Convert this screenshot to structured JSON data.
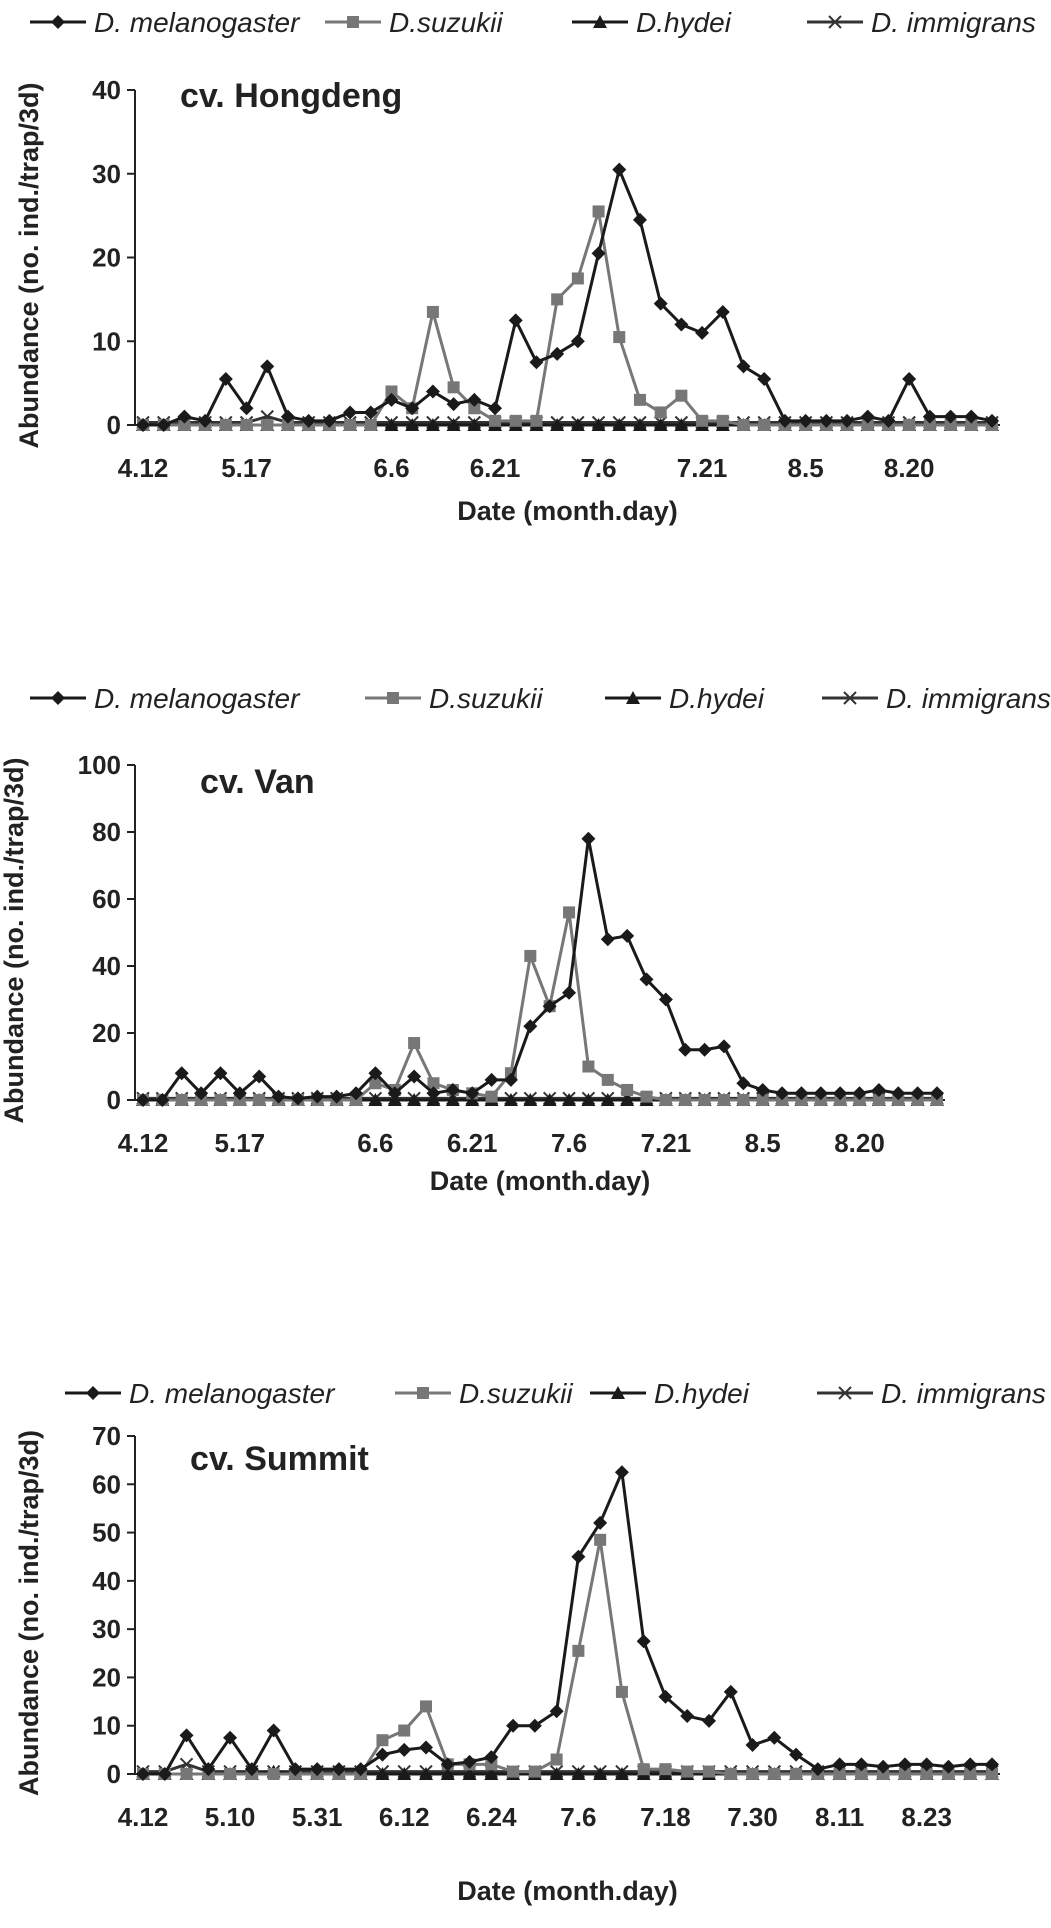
{
  "chart_data": [
    {
      "type": "line",
      "title": "cv. Hongdeng",
      "xlabel": "Date (month.day)",
      "ylabel": "Abundance (no. ind./trap/3d)",
      "ylim": [
        0,
        40
      ],
      "yticks": [
        0,
        10,
        20,
        30,
        40
      ],
      "xtick_labels": [
        "4.12",
        "5.17",
        "6.6",
        "6.21",
        "7.6",
        "7.21",
        "8.5",
        "8.20"
      ],
      "xtick_index": [
        0,
        5,
        12,
        17,
        22,
        27,
        32,
        37
      ],
      "legend_position": "top",
      "grid": false,
      "series": [
        {
          "name": "D. melanogaster",
          "marker": "diamond",
          "color": "#1a1a1a",
          "values": [
            0,
            0,
            1,
            0.5,
            5.5,
            2,
            7,
            1,
            0.5,
            0.5,
            1.5,
            1.5,
            3,
            2,
            4,
            2.5,
            3,
            2,
            12.5,
            7.5,
            8.5,
            10,
            20.5,
            30.5,
            24.5,
            14.5,
            12,
            11,
            13.5,
            7,
            5.5,
            0.5,
            0.5,
            0.5,
            0.5,
            1,
            0.5,
            5.5,
            1,
            1,
            1,
            0.5
          ]
        },
        {
          "name": "D.suzukii",
          "marker": "square",
          "color": "#777777",
          "values": [
            0,
            0,
            0,
            0,
            0,
            0,
            0,
            0,
            0,
            0,
            0,
            0,
            4,
            2,
            13.5,
            4.5,
            2,
            0.5,
            0.5,
            0.5,
            15,
            17.5,
            25.5,
            10.5,
            3,
            1.5,
            3.5,
            0.5,
            0.5,
            0,
            0,
            0,
            0,
            0,
            0,
            0,
            0,
            0,
            0,
            0,
            0,
            0
          ]
        },
        {
          "name": "D.hydei",
          "marker": "triangle",
          "color": "#1a1a1a",
          "values": [
            0,
            0,
            0,
            0,
            0,
            0,
            0,
            0,
            0,
            0,
            0,
            0,
            0,
            0,
            0,
            0,
            0,
            0,
            0,
            0,
            0,
            0,
            0,
            0,
            0,
            0,
            0,
            0,
            0,
            0,
            0,
            0,
            0,
            0,
            0,
            0,
            0,
            0,
            0,
            0,
            0,
            0
          ]
        },
        {
          "name": "D. immigrans",
          "marker": "x",
          "color": "#333333",
          "values": [
            0.3,
            0.3,
            0.3,
            0.3,
            0.3,
            0.3,
            1,
            0.3,
            0.3,
            0.3,
            0.3,
            0.3,
            0.3,
            0.3,
            0.3,
            0.3,
            0.3,
            0.3,
            0.3,
            0.3,
            0.3,
            0.3,
            0.3,
            0.3,
            0.3,
            0.3,
            0.3,
            0.3,
            0.3,
            0.3,
            0.3,
            0.3,
            0.3,
            0.3,
            0.3,
            0.3,
            0.3,
            0.3,
            0.3,
            0.3,
            0.3,
            0.3
          ]
        }
      ]
    },
    {
      "type": "line",
      "title": "cv. Van",
      "xlabel": "Date (month.day)",
      "ylabel": "Abundance (no. ind./trap/3d)",
      "ylim": [
        0,
        100
      ],
      "yticks": [
        0,
        20,
        40,
        60,
        80,
        100
      ],
      "xtick_labels": [
        "4.12",
        "5.17",
        "6.6",
        "6.21",
        "7.6",
        "7.21",
        "8.5",
        "8.20"
      ],
      "xtick_index": [
        0,
        5,
        12,
        17,
        22,
        27,
        32,
        37
      ],
      "legend_position": "top",
      "grid": false,
      "series": [
        {
          "name": "D. melanogaster",
          "marker": "diamond",
          "color": "#1a1a1a",
          "values": [
            0,
            0,
            8,
            2,
            8,
            2,
            7,
            1,
            0.5,
            1,
            1,
            2,
            8,
            2,
            7,
            2,
            3,
            2,
            6,
            6,
            22,
            28,
            32,
            78,
            48,
            49,
            36,
            30,
            15,
            15,
            16,
            5,
            3,
            2,
            2,
            2,
            2,
            2,
            3,
            2,
            2,
            2
          ]
        },
        {
          "name": "D.suzukii",
          "marker": "square",
          "color": "#777777",
          "values": [
            0,
            0,
            0,
            0,
            0,
            0,
            0,
            0,
            0,
            0,
            0,
            0,
            5,
            3,
            17,
            5,
            3,
            2,
            1,
            8,
            43,
            28,
            56,
            10,
            6,
            3,
            1,
            0,
            0,
            0,
            0,
            0,
            0,
            0,
            0,
            0,
            0,
            0,
            0,
            0,
            0,
            0
          ]
        },
        {
          "name": "D.hydei",
          "marker": "triangle",
          "color": "#1a1a1a",
          "values": [
            0,
            0,
            0,
            0,
            0,
            0,
            0,
            0,
            0,
            0,
            0,
            0,
            0,
            0,
            0,
            0,
            0,
            0,
            0,
            0,
            0,
            0,
            0,
            0,
            0,
            0,
            0,
            0,
            0,
            0,
            0,
            0,
            0,
            0,
            0,
            0,
            0,
            0,
            0,
            0,
            0,
            0
          ]
        },
        {
          "name": "D. immigrans",
          "marker": "x",
          "color": "#333333",
          "values": [
            0.5,
            0.5,
            0.5,
            0.5,
            0.5,
            0.5,
            0.5,
            0.5,
            0.5,
            0.5,
            0.5,
            0.5,
            0.5,
            0.5,
            0.5,
            0.5,
            0.5,
            0.5,
            0.5,
            0.5,
            0.5,
            0.5,
            0.5,
            0.5,
            0.5,
            0.5,
            0.5,
            0.5,
            0.5,
            0.5,
            0.5,
            0.5,
            0.5,
            0.5,
            0.5,
            0.5,
            0.5,
            0.5,
            0.5,
            0.5,
            0.5,
            0.5
          ]
        }
      ]
    },
    {
      "type": "line",
      "title": "cv. Summit",
      "xlabel": "Date (month.day)",
      "ylabel": "Abundance (no. ind./trap/3d)",
      "ylim": [
        0,
        70
      ],
      "yticks": [
        0,
        10,
        20,
        30,
        40,
        50,
        60,
        70
      ],
      "xtick_labels": [
        "4.12",
        "5.10",
        "5.31",
        "6.12",
        "6.24",
        "7.6",
        "7.18",
        "7.30",
        "8.11",
        "8.23"
      ],
      "xtick_index": [
        0,
        4,
        8,
        12,
        16,
        20,
        24,
        28,
        32,
        36
      ],
      "legend_position": "top",
      "grid": false,
      "series": [
        {
          "name": "D. melanogaster",
          "marker": "diamond",
          "color": "#1a1a1a",
          "values": [
            0,
            0,
            8,
            1,
            7.5,
            1,
            9,
            1,
            1,
            1,
            1,
            4,
            5,
            5.5,
            2,
            2.5,
            3.5,
            10,
            10,
            13,
            45,
            52,
            62.5,
            27.5,
            16,
            12,
            11,
            17,
            6,
            7.5,
            4,
            1,
            2,
            2,
            1.5,
            2,
            2,
            1.5,
            2,
            2
          ]
        },
        {
          "name": "D.suzukii",
          "marker": "square",
          "color": "#777777",
          "values": [
            0,
            0,
            0,
            0,
            0,
            0,
            0,
            0,
            0,
            0,
            0,
            7,
            9,
            14,
            2,
            2,
            2,
            0.5,
            0.5,
            3,
            25.5,
            48.5,
            17,
            1,
            1,
            0.5,
            0.5,
            0,
            0,
            0,
            0,
            0,
            0,
            0,
            0,
            0,
            0,
            0,
            0,
            0
          ]
        },
        {
          "name": "D.hydei",
          "marker": "triangle",
          "color": "#1a1a1a",
          "values": [
            0,
            0,
            0,
            0,
            0,
            0,
            0.5,
            0,
            0,
            0,
            0,
            0,
            0,
            0,
            0,
            0,
            0,
            0,
            0,
            0,
            0,
            0,
            0,
            0,
            0,
            0,
            0,
            0,
            0,
            0,
            0,
            0,
            0,
            0,
            0,
            0,
            0,
            0,
            0,
            0
          ]
        },
        {
          "name": "D. immigrans",
          "marker": "x",
          "color": "#333333",
          "values": [
            0.5,
            0.5,
            2,
            0.5,
            0.5,
            0.5,
            0.5,
            0.5,
            0.5,
            0.5,
            0.5,
            0.5,
            0.5,
            0.5,
            0.5,
            0.5,
            0.5,
            0.5,
            0.5,
            0.5,
            0.5,
            0.5,
            0.5,
            0.5,
            0.5,
            0.5,
            0.5,
            0.5,
            0.5,
            0.5,
            0.5,
            0.5,
            0.5,
            0.5,
            0.5,
            0.5,
            0.5,
            0.5,
            0.5,
            0.5
          ]
        }
      ]
    }
  ]
}
